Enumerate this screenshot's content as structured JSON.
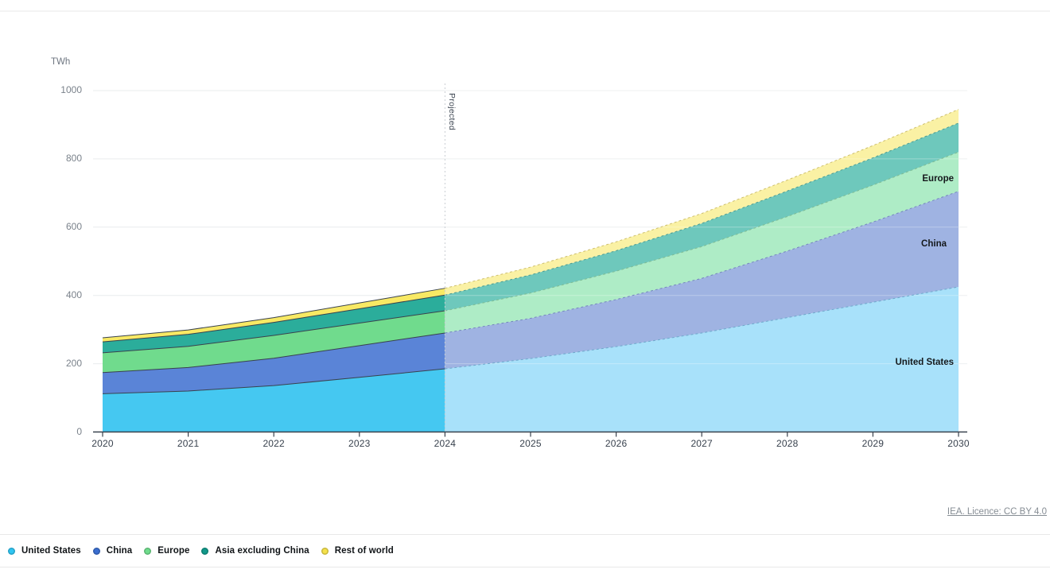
{
  "page": {
    "unit_label": "TWh",
    "projected_label": "Projected",
    "license_text": "IEA. Licence: CC BY 4.0"
  },
  "chart_data": {
    "type": "area",
    "stacked": true,
    "title": "",
    "ylabel": "TWh",
    "xlabel": "",
    "grid": true,
    "ylim": [
      0,
      1000
    ],
    "yticks": [
      0,
      200,
      400,
      600,
      800,
      1000
    ],
    "ytick_labels": [
      "0",
      "200",
      "400",
      "600",
      "800",
      "1000"
    ],
    "x": [
      2020,
      2021,
      2022,
      2023,
      2024,
      2025,
      2026,
      2027,
      2028,
      2029,
      2030
    ],
    "projection_start_year": 2024,
    "projection_annotation": "Projected",
    "series": [
      {
        "name": "United States",
        "values": [
          112,
          120,
          136,
          160,
          185,
          215,
          250,
          290,
          335,
          380,
          425
        ],
        "color": "#45C8F1",
        "projected_color": "#A8E1FA",
        "projected_dash_color": "#6FA9CC"
      },
      {
        "name": "China",
        "values": [
          62,
          69,
          80,
          93,
          105,
          118,
          138,
          160,
          195,
          235,
          280
        ],
        "color": "#5A84D7",
        "projected_color": "#9FB3E2",
        "projected_dash_color": "#7588BC"
      },
      {
        "name": "Europe",
        "values": [
          58,
          62,
          67,
          66,
          65,
          74,
          83,
          93,
          101,
          108,
          115
        ],
        "color": "#70DB8D",
        "projected_color": "#AEECC6",
        "projected_dash_color": "#7FBD95"
      },
      {
        "name": "Asia excluding China",
        "values": [
          32,
          35,
          38,
          42,
          46,
          53,
          60,
          68,
          75,
          80,
          85
        ],
        "color": "#2BAD9B",
        "projected_color": "#6EC8BC",
        "projected_dash_color": "#4D9C92"
      },
      {
        "name": "Rest of world",
        "values": [
          12,
          13,
          14,
          17,
          20,
          23,
          26,
          29,
          32,
          36,
          40
        ],
        "color": "#F8E964",
        "projected_color": "#FAF1A4",
        "projected_dash_color": "#CDBF6E"
      }
    ],
    "area_labels": [
      "Europe",
      "China",
      "United States"
    ],
    "legend_position": "bottom"
  },
  "legend": {
    "items": [
      {
        "label": "United States",
        "color": "#2FC5F2"
      },
      {
        "label": "China",
        "color": "#3A6ED0"
      },
      {
        "label": "Europe",
        "color": "#6FDC8C"
      },
      {
        "label": "Asia excluding China",
        "color": "#11998A"
      },
      {
        "label": "Rest of world",
        "color": "#F5E14B"
      }
    ]
  }
}
